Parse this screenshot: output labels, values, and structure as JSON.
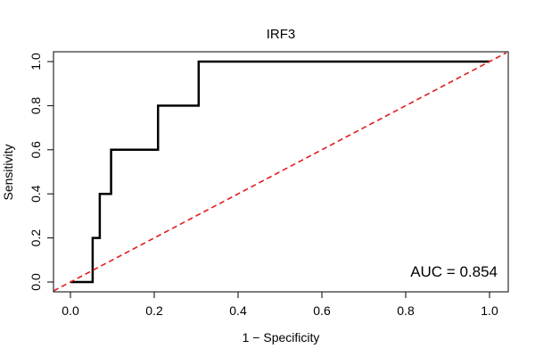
{
  "chart_data": {
    "type": "line",
    "title": "IRF3",
    "xlabel": "1 − Specificity",
    "ylabel": "Sensitivity",
    "xlim": [
      0,
      1
    ],
    "ylim": [
      0,
      1
    ],
    "x_ticks": [
      "0.0",
      "0.2",
      "0.4",
      "0.6",
      "0.8",
      "1.0"
    ],
    "y_ticks": [
      "0.0",
      "0.2",
      "0.4",
      "0.6",
      "0.8",
      "1.0"
    ],
    "grid": false,
    "annotation": "AUC = 0.854",
    "series": [
      {
        "color": "#000000",
        "style": "solid",
        "x": [
          0,
          0.053,
          0.053,
          0.07,
          0.07,
          0.097,
          0.097,
          0.209,
          0.209,
          0.306,
          0.306,
          1.0
        ],
        "y": [
          0,
          0,
          0.2,
          0.2,
          0.4,
          0.4,
          0.6,
          0.6,
          0.8,
          0.8,
          1.0,
          1.0
        ]
      },
      {
        "color": "#e41a1c",
        "style": "dashed",
        "x": [
          -0.04,
          1.04
        ],
        "y": [
          -0.04,
          1.04
        ]
      }
    ]
  }
}
